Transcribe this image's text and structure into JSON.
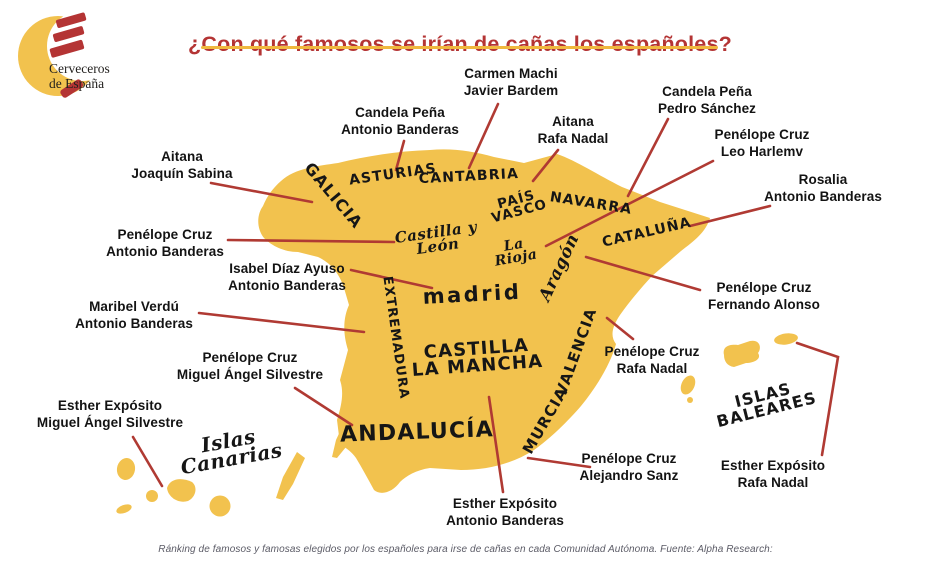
{
  "colors": {
    "map_yellow": "#F2C24E",
    "line_red": "#B03A33",
    "title_red": "#B43434",
    "underline_gold": "#F0B83E",
    "ink": "#161616",
    "footer_gray": "#5B5B66"
  },
  "logo": {
    "line1": "Cerveceros",
    "line2": "de España"
  },
  "header": {
    "title": "¿Con qué famosos se irían de cañas los españoles?"
  },
  "footer": {
    "caption": "Ránking de famosos y famosas elegidos por los españoles para irse de cañas en cada Comunidad Autónoma. Fuente: Alpha Research:"
  },
  "map": {
    "country": "España",
    "regions": [
      {
        "id": "galicia",
        "name": "Galicia",
        "display": [
          "GALICIA"
        ],
        "famous": [
          "Aitana",
          "Joaquín Sabina"
        ]
      },
      {
        "id": "asturias",
        "name": "Asturias",
        "display": [
          "ASTURIAS"
        ],
        "famous": [
          "Candela Peña",
          "Antonio Banderas"
        ]
      },
      {
        "id": "cantabria",
        "name": "Cantabria",
        "display": [
          "CANTABRIA"
        ],
        "famous": [
          "Carmen Machi",
          "Javier Bardem"
        ]
      },
      {
        "id": "pais_vasco",
        "name": "País Vasco",
        "display": [
          "PAÍS",
          "VASCO"
        ],
        "famous": [
          "Aitana",
          "Rafa Nadal"
        ]
      },
      {
        "id": "navarra",
        "name": "Navarra",
        "display": [
          "NAVARRA"
        ],
        "famous": [
          "Candela Peña",
          "Pedro Sánchez"
        ]
      },
      {
        "id": "la_rioja",
        "name": "La Rioja",
        "display": [
          "La",
          "Rioja"
        ],
        "famous": [
          "Penélope Cruz",
          "Leo Harlemv"
        ]
      },
      {
        "id": "cataluna",
        "name": "Cataluña",
        "display": [
          "CATALUÑA"
        ],
        "famous": [
          "Rosalia",
          "Antonio Banderas"
        ]
      },
      {
        "id": "castilla_leon",
        "name": "Castilla y León",
        "display": [
          "Castilla y",
          "León"
        ],
        "famous": [
          "Penélope Cruz",
          "Antonio Banderas"
        ]
      },
      {
        "id": "madrid",
        "name": "Madrid",
        "display": [
          "madrid"
        ],
        "famous": [
          "Isabel Díaz Ayuso",
          "Antonio Banderas"
        ]
      },
      {
        "id": "extremadura",
        "name": "Extremadura",
        "display": [
          "EXTREMADURA"
        ],
        "famous": [
          "Maribel Verdú",
          "Antonio Banderas"
        ]
      },
      {
        "id": "aragon",
        "name": "Aragón",
        "display": [
          "Aragón"
        ],
        "famous": [
          "Penélope Cruz",
          "Fernando Alonso"
        ]
      },
      {
        "id": "valencia",
        "name": "Valencia",
        "display": [
          "VALENCIA"
        ],
        "famous": [
          "Penélope Cruz",
          "Rafa Nadal"
        ]
      },
      {
        "id": "castilla_mancha",
        "name": "Castilla-La Mancha",
        "display": [
          "CASTILLA",
          "LA MANCHA"
        ],
        "famous": [
          "Esther Expósito",
          "Antonio Banderas"
        ]
      },
      {
        "id": "andalucia",
        "name": "Andalucía",
        "display": [
          "ANDALUCÍA"
        ],
        "famous": [
          "Penélope Cruz",
          "Miguel Ángel Silvestre"
        ]
      },
      {
        "id": "murcia",
        "name": "Murcia",
        "display": [
          "MURCIA"
        ],
        "famous": [
          "Penélope Cruz",
          "Alejandro Sanz"
        ]
      },
      {
        "id": "canarias",
        "name": "Islas Canarias",
        "display": [
          "Islas",
          "Canarias"
        ],
        "famous": [
          "Esther Expósito",
          "Miguel Ángel Silvestre"
        ]
      },
      {
        "id": "baleares",
        "name": "Islas Baleares",
        "display": [
          "ISLAS",
          "BALEARES"
        ],
        "famous": [
          "Esther Expósito",
          "Rafa Nadal"
        ]
      }
    ]
  }
}
